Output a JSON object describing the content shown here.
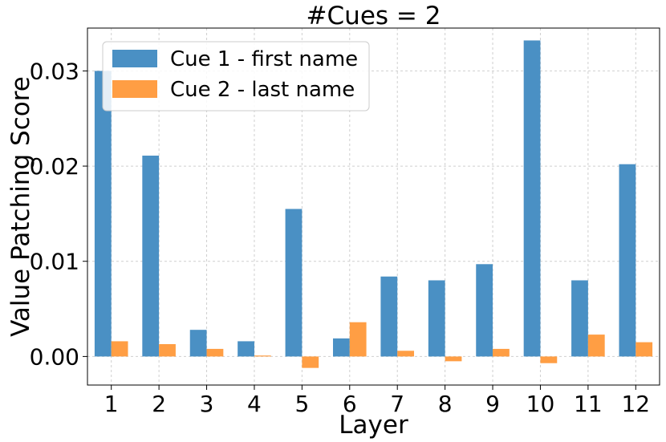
{
  "chart_data": {
    "type": "bar",
    "title": "#Cues = 2",
    "xlabel": "Layer",
    "ylabel": "Value Patching Score",
    "categories": [
      "1",
      "2",
      "3",
      "4",
      "5",
      "6",
      "7",
      "8",
      "9",
      "10",
      "11",
      "12"
    ],
    "series": [
      {
        "name": "Cue 1 - first name",
        "color": "#4a90c4",
        "values": [
          0.03,
          0.0211,
          0.0028,
          0.0016,
          0.0155,
          0.0019,
          0.0084,
          0.008,
          0.0097,
          0.0332,
          0.008,
          0.0202
        ]
      },
      {
        "name": "Cue 2 - last name",
        "color": "#ff9e44",
        "values": [
          0.0016,
          0.0013,
          0.0008,
          0.0001,
          -0.0012,
          0.0036,
          0.0006,
          -0.0005,
          0.0008,
          -0.0007,
          0.0023,
          0.0015
        ]
      }
    ],
    "ylim": [
      -0.003,
      0.0345
    ],
    "yticks": [
      "0.00",
      "0.01",
      "0.02",
      "0.03"
    ],
    "ytick_values": [
      0.0,
      0.01,
      0.02,
      0.03
    ],
    "grid": true,
    "legend_position": "top-left"
  }
}
